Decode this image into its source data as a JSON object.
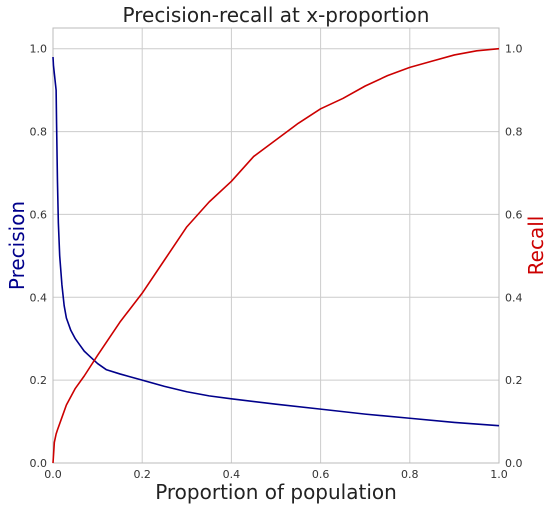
{
  "chart_data": {
    "type": "line",
    "title": "Precision-recall at x-proportion",
    "xlabel": "Proportion of population",
    "ylabel_left": "Precision",
    "ylabel_right": "Recall",
    "xlim": [
      0,
      1
    ],
    "ylim_left": [
      0,
      1.05
    ],
    "ylim_right": [
      0,
      1.05
    ],
    "grid": true,
    "legend": "none",
    "x_ticks": [
      "0.0",
      "0.2",
      "0.4",
      "0.6",
      "0.8",
      "1.0"
    ],
    "x_tick_values": [
      0,
      0.2,
      0.4,
      0.6,
      0.8,
      1.0
    ],
    "y_ticks": [
      "0.0",
      "0.2",
      "0.4",
      "0.6",
      "0.8",
      "1.0"
    ],
    "y_tick_values": [
      0,
      0.2,
      0.4,
      0.6,
      0.8,
      1.0
    ],
    "colors": {
      "precision": "#00008b",
      "recall": "#cc0000",
      "grid": "#cccccc",
      "frame": "#bbbbbb"
    },
    "series": [
      {
        "name": "Precision",
        "axis": "left",
        "x": [
          0,
          0.001,
          0.003,
          0.005,
          0.007,
          0.008,
          0.01,
          0.012,
          0.015,
          0.02,
          0.025,
          0.03,
          0.04,
          0.05,
          0.06,
          0.07,
          0.08,
          0.1,
          0.12,
          0.15,
          0.2,
          0.25,
          0.3,
          0.35,
          0.4,
          0.5,
          0.6,
          0.7,
          0.8,
          0.9,
          1.0
        ],
        "y": [
          0.98,
          0.96,
          0.94,
          0.92,
          0.9,
          0.82,
          0.68,
          0.58,
          0.5,
          0.43,
          0.38,
          0.35,
          0.32,
          0.3,
          0.285,
          0.27,
          0.26,
          0.24,
          0.225,
          0.215,
          0.2,
          0.185,
          0.172,
          0.162,
          0.155,
          0.142,
          0.13,
          0.118,
          0.108,
          0.098,
          0.09
        ]
      },
      {
        "name": "Recall",
        "axis": "right",
        "x": [
          0,
          0.003,
          0.007,
          0.01,
          0.02,
          0.03,
          0.05,
          0.07,
          0.1,
          0.15,
          0.2,
          0.25,
          0.3,
          0.35,
          0.4,
          0.45,
          0.5,
          0.55,
          0.6,
          0.65,
          0.7,
          0.75,
          0.8,
          0.85,
          0.9,
          0.95,
          1.0
        ],
        "y": [
          0.0,
          0.05,
          0.07,
          0.08,
          0.11,
          0.14,
          0.18,
          0.21,
          0.26,
          0.34,
          0.41,
          0.49,
          0.57,
          0.63,
          0.68,
          0.74,
          0.78,
          0.82,
          0.855,
          0.88,
          0.91,
          0.935,
          0.955,
          0.97,
          0.985,
          0.995,
          1.0
        ]
      }
    ]
  }
}
